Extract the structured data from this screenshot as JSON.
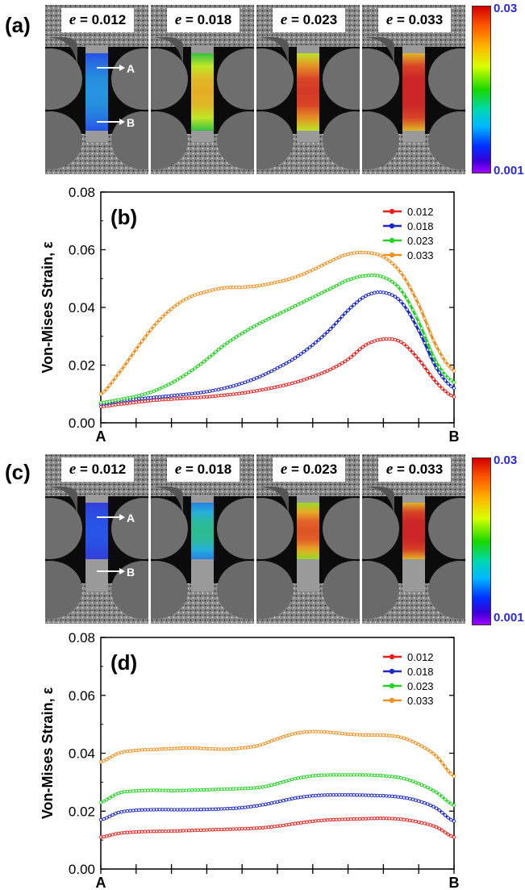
{
  "panels": {
    "a": {
      "letter": "(a)"
    },
    "b": {
      "letter": "(b)"
    },
    "c": {
      "letter": "(c)"
    },
    "d": {
      "letter": "(d)"
    }
  },
  "strain_symbol": "e",
  "photo_strains": [
    "0.012",
    "0.018",
    "0.023",
    "0.033"
  ],
  "photo_levels_a": [
    0.35,
    0.65,
    0.85,
    1.0
  ],
  "photo_levels_c": [
    0.25,
    0.45,
    0.8,
    1.0
  ],
  "markers": {
    "a": "A",
    "b": "B"
  },
  "colorbar": {
    "max": "0.03",
    "min": "0.001"
  },
  "chart_data": [
    {
      "type": "line",
      "panel": "(b)",
      "title": "",
      "ylabel": "Von-Mises Strain, ε",
      "xlabel": "",
      "x_end_labels": [
        "A",
        "B"
      ],
      "x": [
        0,
        0.05,
        0.1,
        0.15,
        0.2,
        0.25,
        0.3,
        0.35,
        0.4,
        0.45,
        0.5,
        0.55,
        0.6,
        0.65,
        0.7,
        0.75,
        0.8,
        0.85,
        0.9,
        0.95,
        1
      ],
      "ylim": [
        0,
        0.08
      ],
      "yticks": [
        "0.00",
        "0.02",
        "0.04",
        "0.06",
        "0.08"
      ],
      "legend_position": "top-right",
      "grid": false,
      "series": [
        {
          "name": "0.012",
          "color": "#e8201c",
          "values": [
            0.0056,
            0.0064,
            0.0071,
            0.0078,
            0.0082,
            0.0086,
            0.009,
            0.0096,
            0.0103,
            0.0113,
            0.0125,
            0.014,
            0.016,
            0.0185,
            0.022,
            0.027,
            0.029,
            0.028,
            0.022,
            0.014,
            0.009
          ]
        },
        {
          "name": "0.018",
          "color": "#1c28c8",
          "values": [
            0.0065,
            0.0075,
            0.0082,
            0.0088,
            0.0094,
            0.01,
            0.0108,
            0.012,
            0.0137,
            0.016,
            0.019,
            0.0225,
            0.027,
            0.0325,
            0.039,
            0.044,
            0.0452,
            0.042,
            0.032,
            0.019,
            0.012
          ]
        },
        {
          "name": "0.023",
          "color": "#22d420",
          "values": [
            0.007,
            0.008,
            0.0092,
            0.011,
            0.0138,
            0.0175,
            0.022,
            0.027,
            0.031,
            0.0345,
            0.0375,
            0.0405,
            0.0435,
            0.0465,
            0.0495,
            0.051,
            0.0505,
            0.046,
            0.035,
            0.021,
            0.014
          ]
        },
        {
          "name": "0.033",
          "color": "#f09020",
          "values": [
            0.01,
            0.017,
            0.0255,
            0.0335,
            0.0395,
            0.0435,
            0.0455,
            0.0468,
            0.047,
            0.0476,
            0.0488,
            0.0505,
            0.053,
            0.056,
            0.0585,
            0.059,
            0.0575,
            0.052,
            0.041,
            0.0265,
            0.018
          ]
        }
      ]
    },
    {
      "type": "line",
      "panel": "(d)",
      "title": "",
      "ylabel": "Von-Mises Strain, ε",
      "xlabel": "",
      "x_end_labels": [
        "A",
        "B"
      ],
      "x": [
        0,
        0.05,
        0.1,
        0.15,
        0.2,
        0.25,
        0.3,
        0.35,
        0.4,
        0.45,
        0.5,
        0.55,
        0.6,
        0.65,
        0.7,
        0.75,
        0.8,
        0.85,
        0.9,
        0.95,
        1
      ],
      "ylim": [
        0,
        0.08
      ],
      "yticks": [
        "0.00",
        "0.02",
        "0.04",
        "0.06",
        "0.08"
      ],
      "legend_position": "top-right",
      "grid": false,
      "series": [
        {
          "name": "0.012",
          "color": "#e8201c",
          "values": [
            0.011,
            0.0123,
            0.0128,
            0.013,
            0.0131,
            0.0133,
            0.0135,
            0.0137,
            0.0139,
            0.0142,
            0.0148,
            0.0157,
            0.0165,
            0.017,
            0.0172,
            0.0174,
            0.0175,
            0.0172,
            0.0162,
            0.0145,
            0.011
          ]
        },
        {
          "name": "0.018",
          "color": "#1c28c8",
          "values": [
            0.017,
            0.0195,
            0.0203,
            0.0205,
            0.0205,
            0.0205,
            0.0206,
            0.0208,
            0.0212,
            0.022,
            0.0232,
            0.0245,
            0.0253,
            0.0256,
            0.0256,
            0.0255,
            0.0253,
            0.0248,
            0.0235,
            0.021,
            0.0165
          ]
        },
        {
          "name": "0.023",
          "color": "#22d420",
          "values": [
            0.023,
            0.0262,
            0.027,
            0.0272,
            0.0271,
            0.0272,
            0.0274,
            0.0276,
            0.0278,
            0.0282,
            0.0295,
            0.0312,
            0.0322,
            0.0325,
            0.0325,
            0.0325,
            0.0322,
            0.0315,
            0.0295,
            0.0265,
            0.022
          ]
        },
        {
          "name": "0.033",
          "color": "#f09020",
          "values": [
            0.037,
            0.04,
            0.041,
            0.0413,
            0.0416,
            0.0418,
            0.0416,
            0.0414,
            0.0418,
            0.0428,
            0.045,
            0.0468,
            0.0475,
            0.0472,
            0.0466,
            0.0463,
            0.0462,
            0.0455,
            0.043,
            0.039,
            0.032
          ]
        }
      ]
    }
  ]
}
